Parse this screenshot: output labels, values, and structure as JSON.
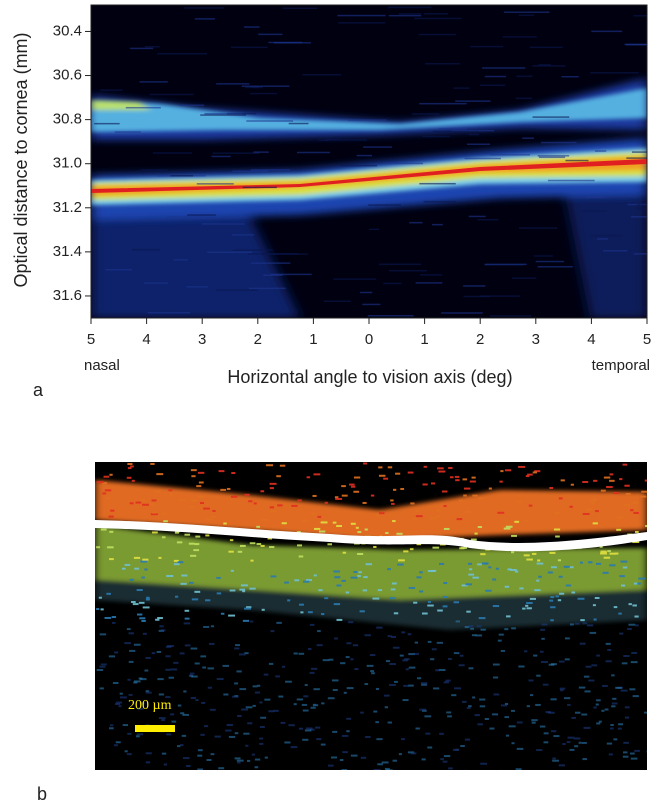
{
  "panel_a": {
    "label": "a",
    "y_axis_label": "Optical distance to cornea (mm)",
    "x_axis_label": "Horizontal angle to vision axis (deg)",
    "x_left_label": "nasal",
    "x_right_label": "temporal",
    "ylim": [
      30.28,
      31.7
    ],
    "yticks": [
      {
        "value": 30.4,
        "label": "30.4"
      },
      {
        "value": 30.6,
        "label": "30.6"
      },
      {
        "value": 30.8,
        "label": "30.8"
      },
      {
        "value": 31.0,
        "label": "31.0"
      },
      {
        "value": 31.2,
        "label": "31.2"
      },
      {
        "value": 31.4,
        "label": "31.4"
      },
      {
        "value": 31.6,
        "label": "31.6"
      }
    ],
    "xlim": [
      -5,
      5
    ],
    "xticks": [
      {
        "value": -5,
        "label": "5"
      },
      {
        "value": -4,
        "label": "4"
      },
      {
        "value": -3,
        "label": "3"
      },
      {
        "value": -2,
        "label": "2"
      },
      {
        "value": -1,
        "label": "1"
      },
      0,
      1,
      2,
      3,
      4,
      5
    ]
  },
  "panel_b": {
    "label": "b",
    "scale_bar": "200 µm"
  }
}
